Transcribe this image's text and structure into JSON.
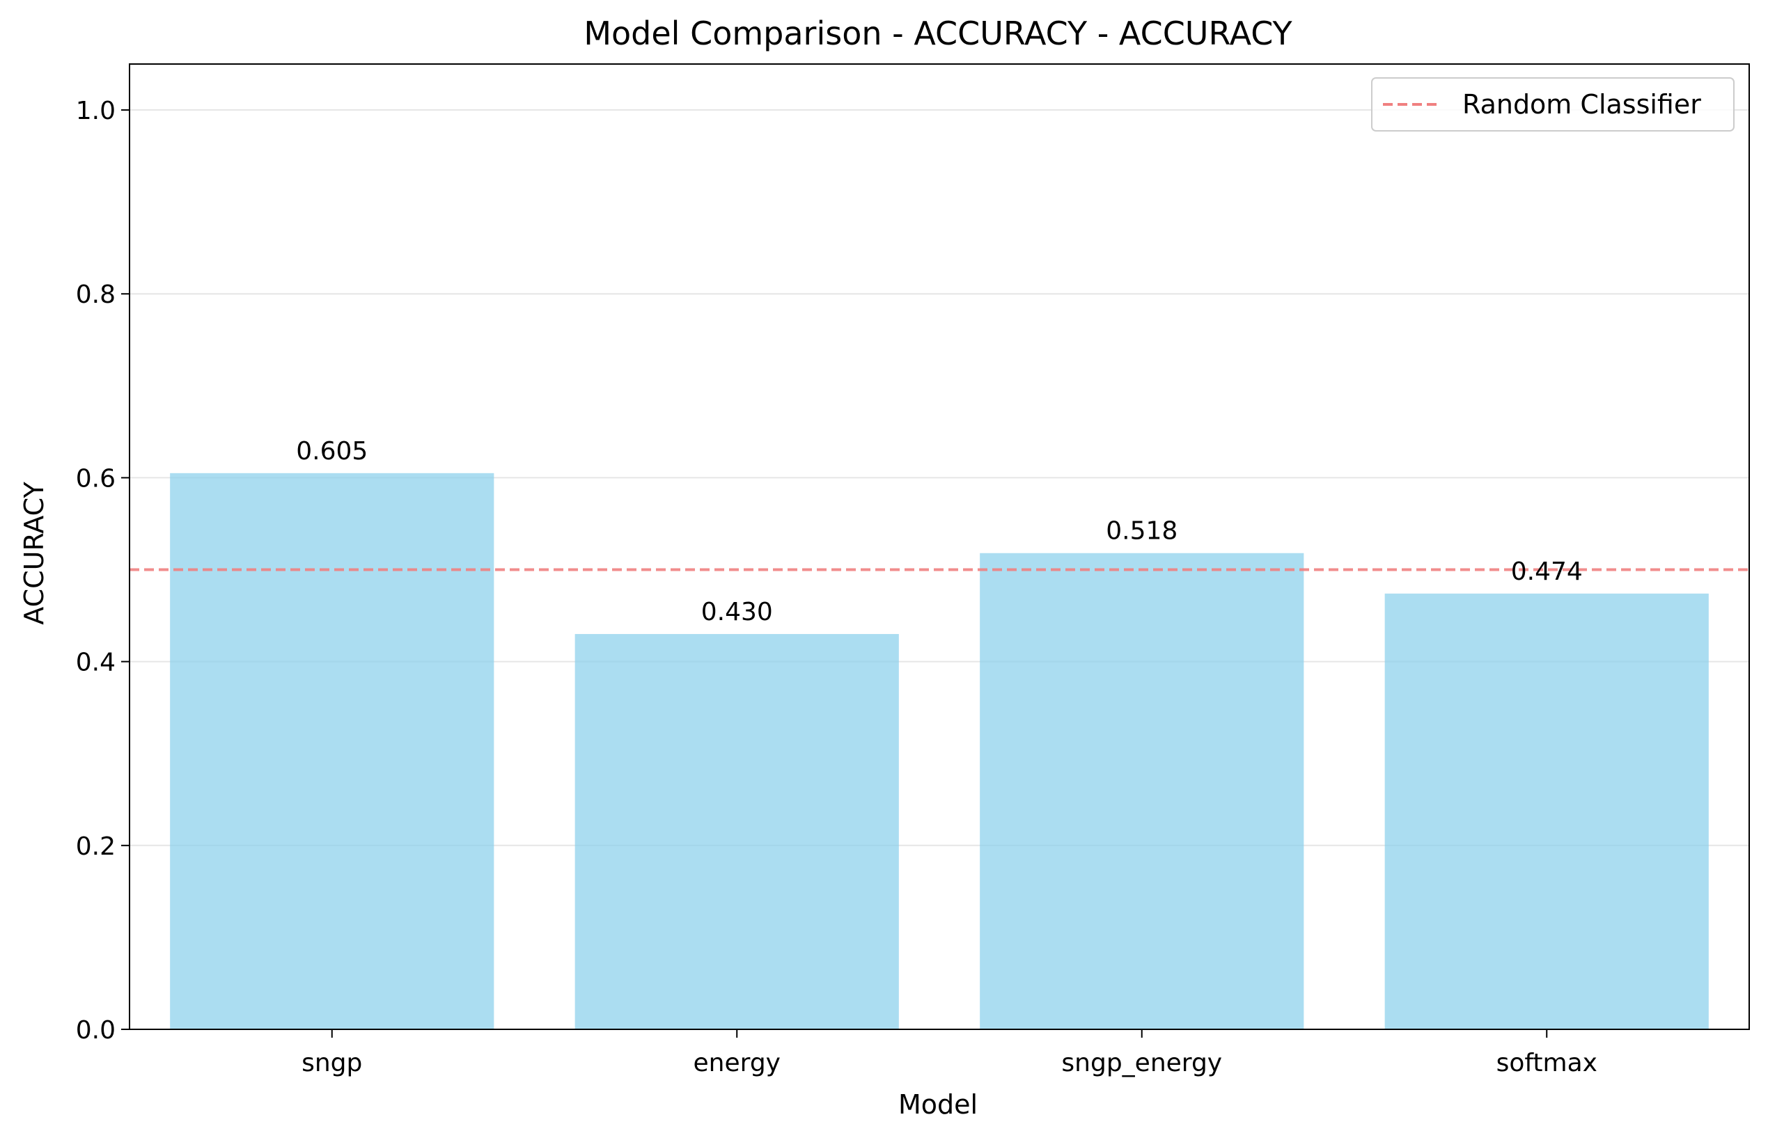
{
  "chart_data": {
    "type": "bar",
    "title": "Model Comparison - ACCURACY - ACCURACY",
    "xlabel": "Model",
    "ylabel": "ACCURACY",
    "categories": [
      "sngp",
      "energy",
      "sngp_energy",
      "softmax"
    ],
    "values": [
      0.605,
      0.43,
      0.518,
      0.474
    ],
    "data_labels": [
      "0.605",
      "0.430",
      "0.518",
      "0.474"
    ],
    "ylim": [
      0,
      1.05
    ],
    "yticks": [
      0.0,
      0.2,
      0.4,
      0.6,
      0.8,
      1.0
    ],
    "ytick_labels": [
      "0.0",
      "0.2",
      "0.4",
      "0.6",
      "0.8",
      "1.0"
    ],
    "grid": "y-only",
    "bar_color": "#87CEEB",
    "reference_line": {
      "name": "Random Classifier",
      "y": 0.5,
      "color": "#f08080",
      "style": "dashed"
    },
    "legend": {
      "position": "top-right",
      "entries": [
        "Random Classifier"
      ]
    }
  }
}
